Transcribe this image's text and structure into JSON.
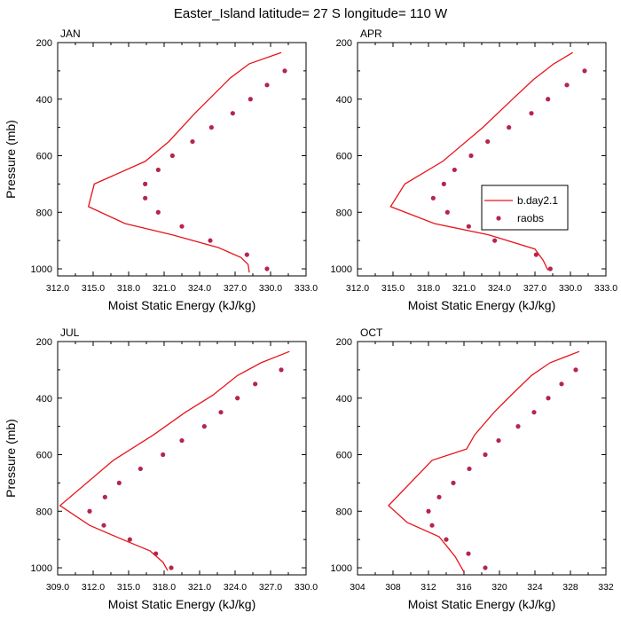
{
  "figure": {
    "title": "Easter_Island  latitude= 27 S longitude= 110 W",
    "model_color": "#e8141b",
    "obs_color": "#b5254d",
    "legend": {
      "model_label": "b.day2.1",
      "obs_label": "raobs",
      "placement": "right-middle of APR panel"
    }
  },
  "chart_data": [
    {
      "type": "line",
      "panel": "JAN",
      "title": "JAN",
      "xlabel": "Moist Static Energy (kJ/kg)",
      "ylabel": "Pressure (mb)",
      "xlim": [
        312,
        333
      ],
      "ylim": [
        1025,
        200
      ],
      "x_ticks": [
        312,
        315,
        318,
        321,
        324,
        327,
        330,
        333
      ],
      "x_tick_labels": [
        "312.0",
        "315.0",
        "318.0",
        "321.0",
        "324.0",
        "327.0",
        "330.0",
        "333.0"
      ],
      "y_ticks": [
        200,
        400,
        600,
        800,
        1000
      ],
      "y_tick_labels": [
        "200",
        "400",
        "600",
        "800",
        "1000"
      ],
      "series": [
        {
          "name": "b.day2.1",
          "style": "line",
          "x": [
            330.9,
            328.2,
            326.6,
            323.6,
            321.4,
            319.4,
            315.1,
            314.6,
            317.7,
            321.7,
            325.6,
            327.5,
            328.1,
            328.2
          ],
          "y": [
            235,
            275,
            325,
            450,
            550,
            620,
            700,
            780,
            840,
            880,
            925,
            960,
            985,
            1013
          ]
        },
        {
          "name": "raobs",
          "style": "markers",
          "x": [
            331.2,
            329.7,
            328.3,
            326.8,
            325.0,
            323.4,
            321.7,
            320.5,
            319.4,
            319.4,
            320.5,
            322.5,
            324.9,
            328.0,
            329.7
          ],
          "y": [
            300,
            350,
            400,
            450,
            500,
            550,
            600,
            650,
            700,
            750,
            800,
            850,
            900,
            950,
            1000
          ]
        }
      ]
    },
    {
      "type": "line",
      "panel": "APR",
      "title": "APR",
      "xlabel": "Moist Static Energy (kJ/kg)",
      "ylabel": "",
      "xlim": [
        312,
        333
      ],
      "ylim": [
        1025,
        200
      ],
      "x_ticks": [
        312,
        315,
        318,
        321,
        324,
        327,
        330,
        333
      ],
      "x_tick_labels": [
        "312.0",
        "315.0",
        "318.0",
        "321.0",
        "324.0",
        "327.0",
        "330.0",
        "333.0"
      ],
      "y_ticks": [
        200,
        400,
        600,
        800,
        1000
      ],
      "y_tick_labels": [
        "200",
        "400",
        "600",
        "800",
        "1000"
      ],
      "series": [
        {
          "name": "b.day2.1",
          "style": "line",
          "x": [
            330.2,
            328.6,
            326.9,
            325.1,
            322.6,
            319.2,
            316.0,
            314.8,
            318.5,
            323.1,
            327.0,
            327.7,
            328.1
          ],
          "y": [
            235,
            275,
            330,
            400,
            500,
            620,
            700,
            780,
            840,
            880,
            930,
            970,
            1005
          ]
        },
        {
          "name": "raobs",
          "style": "markers",
          "x": [
            331.2,
            329.7,
            328.1,
            326.7,
            324.8,
            323.0,
            321.6,
            320.2,
            319.3,
            318.4,
            319.6,
            321.4,
            323.6,
            327.1,
            328.3
          ],
          "y": [
            300,
            350,
            400,
            450,
            500,
            550,
            600,
            650,
            700,
            750,
            800,
            850,
            900,
            950,
            1000
          ]
        }
      ]
    },
    {
      "type": "line",
      "panel": "JUL",
      "title": "JUL",
      "xlabel": "Moist Static Energy (kJ/kg)",
      "ylabel": "Pressure (mb)",
      "xlim": [
        309,
        330
      ],
      "ylim": [
        1025,
        200
      ],
      "x_ticks": [
        309,
        312,
        315,
        318,
        321,
        324,
        327,
        330
      ],
      "x_tick_labels": [
        "309.0",
        "312.0",
        "315.0",
        "318.0",
        "321.0",
        "324.0",
        "327.0",
        "330.0"
      ],
      "y_ticks": [
        200,
        400,
        600,
        800,
        1000
      ],
      "y_tick_labels": [
        "200",
        "400",
        "600",
        "800",
        "1000"
      ],
      "series": [
        {
          "name": "b.day2.1",
          "style": "line",
          "x": [
            328.6,
            326.2,
            324.2,
            322.1,
            319.8,
            317.1,
            313.7,
            309.2,
            311.7,
            314.5,
            316.8,
            317.9,
            318.3
          ],
          "y": [
            235,
            275,
            320,
            390,
            450,
            530,
            620,
            780,
            850,
            900,
            940,
            980,
            1010
          ]
        },
        {
          "name": "raobs",
          "style": "markers",
          "x": [
            327.9,
            325.7,
            324.2,
            322.8,
            321.4,
            319.5,
            317.9,
            316.0,
            314.2,
            313.0,
            311.7,
            312.9,
            315.1,
            317.3,
            318.6
          ],
          "y": [
            300,
            350,
            400,
            450,
            500,
            550,
            600,
            650,
            700,
            750,
            800,
            850,
            900,
            950,
            1000
          ]
        }
      ]
    },
    {
      "type": "line",
      "panel": "OCT",
      "title": "OCT",
      "xlabel": "Moist Static Energy (kJ/kg)",
      "ylabel": "",
      "xlim": [
        304,
        332
      ],
      "ylim": [
        1025,
        200
      ],
      "x_ticks": [
        304,
        308,
        312,
        316,
        320,
        324,
        328,
        332
      ],
      "x_tick_labels": [
        "304",
        "308",
        "312",
        "316",
        "320",
        "324",
        "328",
        "332"
      ],
      "y_ticks": [
        200,
        400,
        600,
        800,
        1000
      ],
      "y_tick_labels": [
        "200",
        "400",
        "600",
        "800",
        "1000"
      ],
      "series": [
        {
          "name": "b.day2.1",
          "style": "line",
          "x": [
            329.0,
            325.7,
            323.6,
            321.3,
            319.4,
            317.2,
            316.3,
            312.4,
            307.5,
            309.6,
            313.2,
            315.0,
            316.0
          ],
          "y": [
            235,
            275,
            320,
            390,
            450,
            530,
            580,
            620,
            780,
            840,
            890,
            960,
            1015
          ]
        },
        {
          "name": "raobs",
          "style": "markers",
          "x": [
            328.6,
            327.0,
            325.5,
            323.9,
            322.1,
            319.9,
            318.4,
            316.6,
            314.8,
            313.2,
            312.0,
            312.4,
            314.0,
            316.5,
            318.4
          ],
          "y": [
            300,
            350,
            400,
            450,
            500,
            550,
            600,
            650,
            700,
            750,
            800,
            850,
            900,
            950,
            1000
          ]
        }
      ]
    }
  ]
}
